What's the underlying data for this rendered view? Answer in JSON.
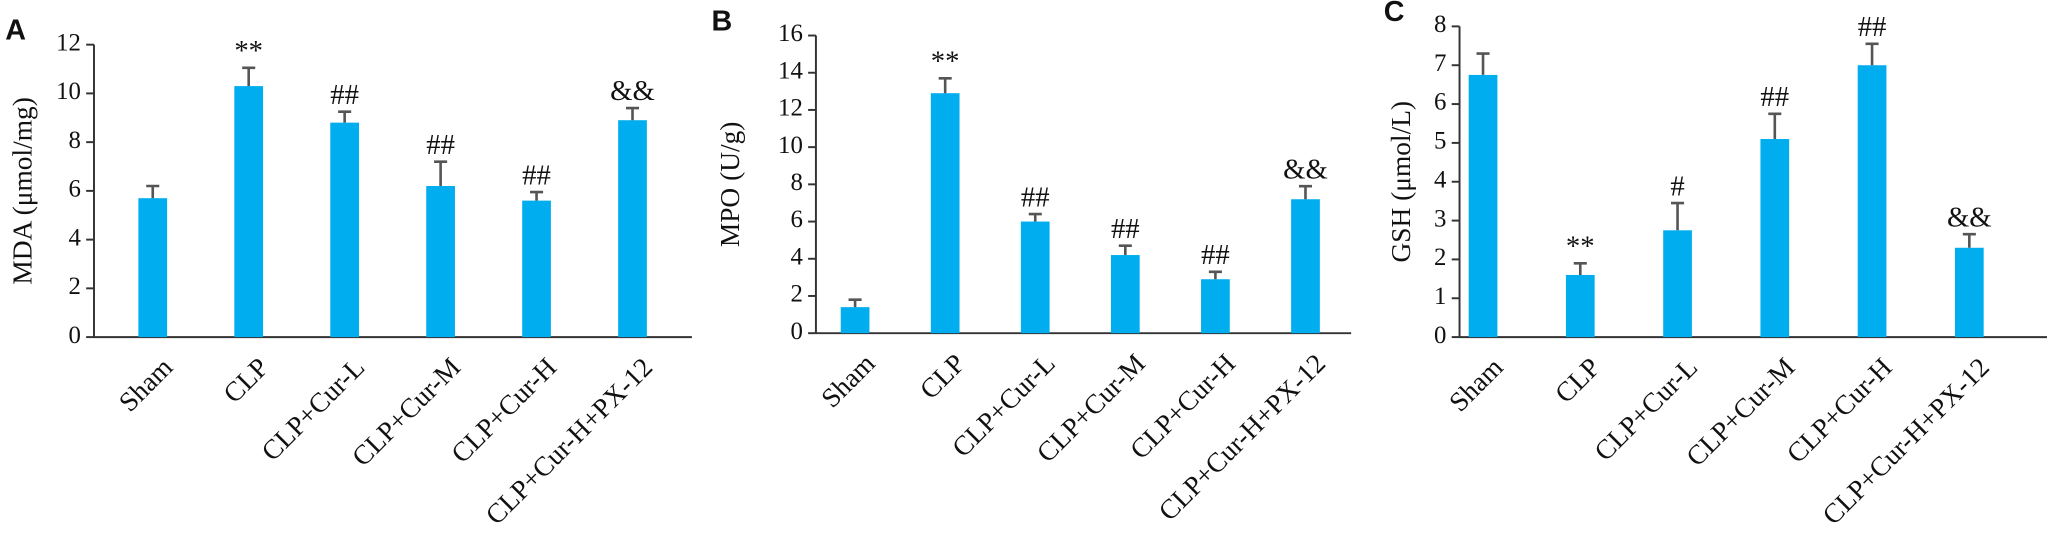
{
  "chart_data": [
    {
      "type": "bar",
      "panel_label": "A",
      "y_label": "MDA (μmol/mg)",
      "categories": [
        "Sham",
        "CLP",
        "CLP+Cur-L",
        "CLP+Cur-M",
        "CLP+Cur-H",
        "CLP+Cur-H+PX-12"
      ],
      "values": [
        5.7,
        10.3,
        8.8,
        6.2,
        5.6,
        8.9
      ],
      "errors": [
        0.5,
        0.75,
        0.45,
        1.0,
        0.35,
        0.5
      ],
      "annotations": [
        null,
        "**",
        "##",
        "##",
        "##",
        "&&"
      ],
      "color": "#00aeef",
      "ylim": [
        0,
        12
      ],
      "yticks": [
        0,
        2,
        4,
        6,
        8,
        10,
        12
      ]
    },
    {
      "type": "bar",
      "panel_label": "B",
      "y_label": "MPO (U/g)",
      "categories": [
        "Sham",
        "CLP",
        "CLP+Cur-L",
        "CLP+Cur-M",
        "CLP+Cur-H",
        "CLP+Cur-H+PX-12"
      ],
      "values": [
        1.4,
        12.9,
        6.0,
        4.2,
        2.9,
        7.2
      ],
      "errors": [
        0.4,
        0.8,
        0.4,
        0.5,
        0.4,
        0.7
      ],
      "annotations": [
        null,
        "**",
        "##",
        "##",
        "##",
        "&&"
      ],
      "color": "#00aeef",
      "ylim": [
        0,
        16
      ],
      "yticks": [
        0,
        2,
        4,
        6,
        8,
        10,
        12,
        14,
        16
      ]
    },
    {
      "type": "bar",
      "panel_label": "C",
      "y_label": "GSH (μmol/L)",
      "categories": [
        "Sham",
        "CLP",
        "CLP+Cur-L",
        "CLP+Cur-M",
        "CLP+Cur-H",
        "CLP+Cur-H+PX-12"
      ],
      "values": [
        6.75,
        1.6,
        2.75,
        5.1,
        7.0,
        2.3
      ],
      "errors": [
        0.55,
        0.3,
        0.7,
        0.65,
        0.55,
        0.35
      ],
      "annotations": [
        null,
        "**",
        "#",
        "##",
        "##",
        "&&"
      ],
      "color": "#00aeef",
      "ylim": [
        0,
        8
      ],
      "yticks": [
        0,
        1,
        2,
        3,
        4,
        5,
        6,
        7,
        8
      ]
    }
  ]
}
